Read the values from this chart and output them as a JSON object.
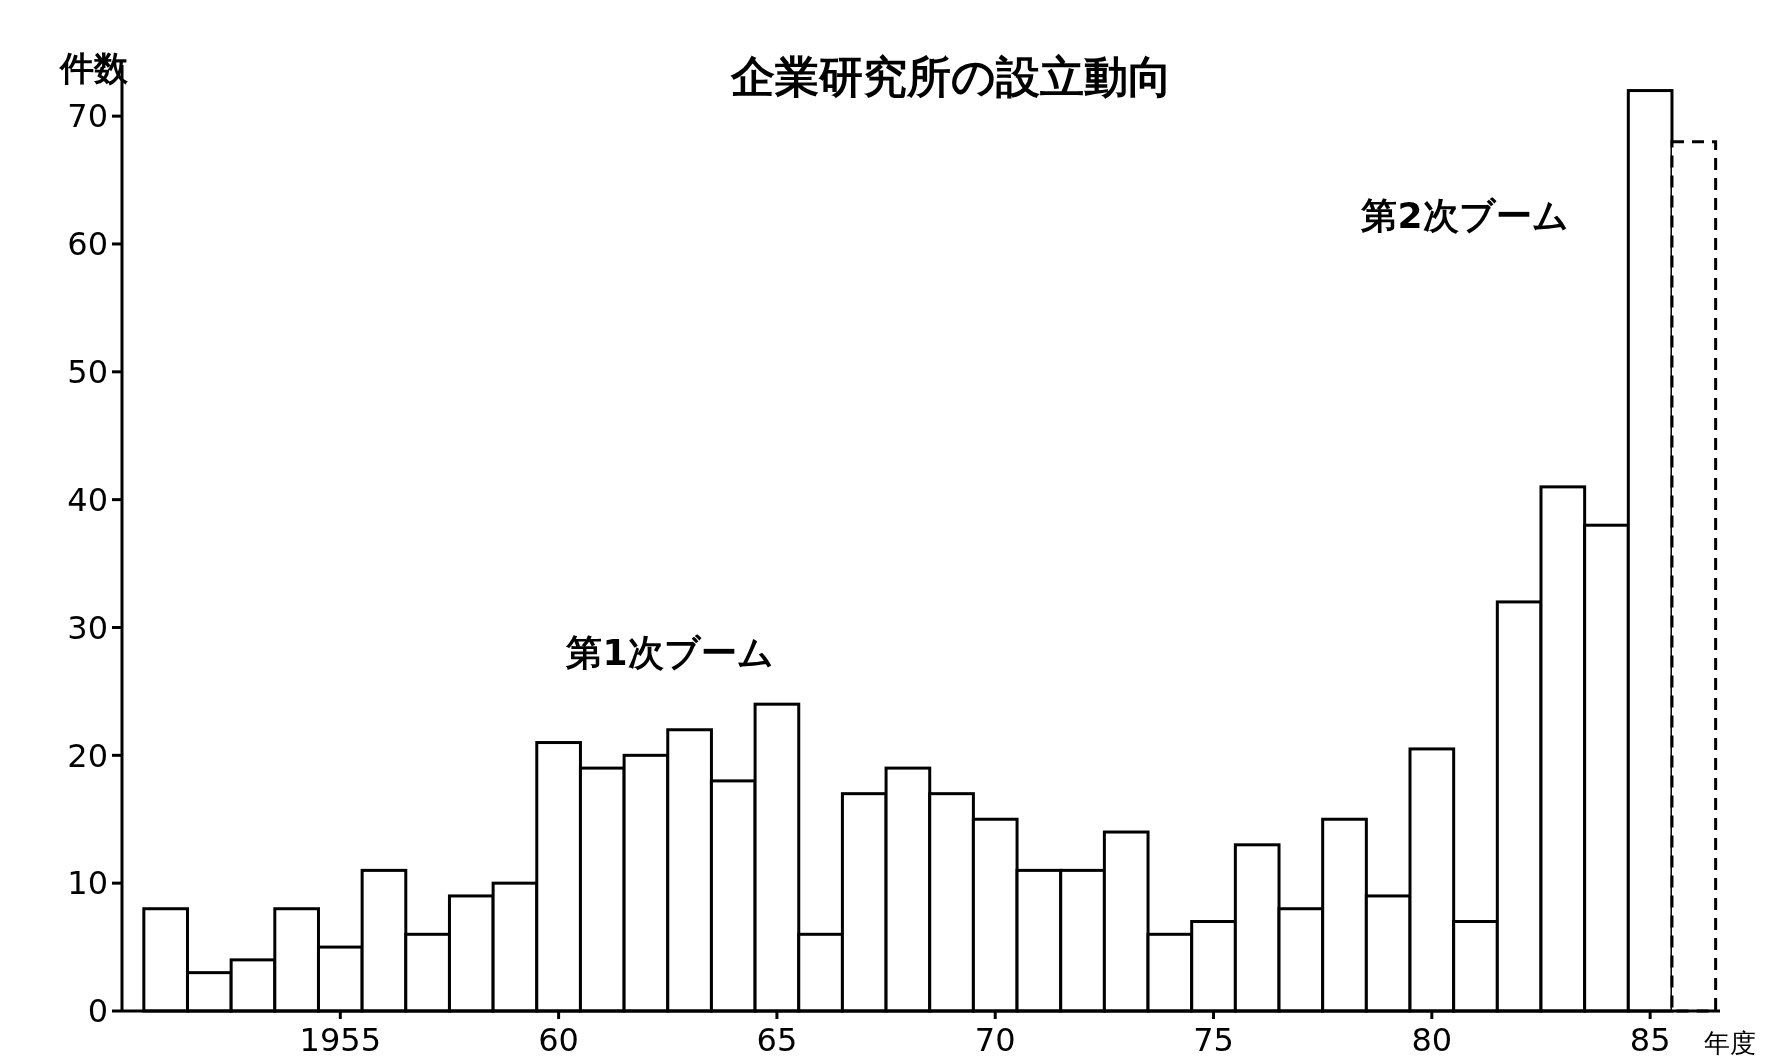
{
  "chart_data": {
    "type": "bar",
    "title": "企業研究所の設立動向",
    "ylabel": "件数",
    "xlabel": "年度",
    "x": [
      1951,
      1952,
      1953,
      1954,
      1955,
      1956,
      1957,
      1958,
      1959,
      1960,
      1961,
      1962,
      1963,
      1964,
      1965,
      1966,
      1967,
      1968,
      1969,
      1970,
      1971,
      1972,
      1973,
      1974,
      1975,
      1976,
      1977,
      1978,
      1979,
      1980,
      1981,
      1982,
      1983,
      1984,
      1985,
      1986
    ],
    "series": [
      {
        "color": "#000000",
        "line_style": "solid",
        "values": [
          8,
          3,
          4,
          8,
          5,
          11,
          6,
          9,
          10,
          21,
          19,
          20,
          22,
          18,
          24,
          6,
          17,
          19,
          17,
          15,
          11,
          11,
          14,
          6,
          7,
          13,
          8,
          15,
          9,
          20.5,
          7,
          32,
          41,
          38,
          72,
          null
        ]
      },
      {
        "color": "#000000",
        "line_style": "dashed",
        "values": [
          null,
          null,
          null,
          null,
          null,
          null,
          null,
          null,
          null,
          null,
          null,
          null,
          null,
          null,
          null,
          null,
          null,
          null,
          null,
          null,
          null,
          null,
          null,
          null,
          null,
          null,
          null,
          null,
          null,
          null,
          null,
          null,
          null,
          null,
          null,
          68
        ]
      }
    ],
    "xlim": [
      1950,
      1986.6
    ],
    "xticks": [
      {
        "value": 1955,
        "label": "1955"
      },
      {
        "value": 1960,
        "label": "60"
      },
      {
        "value": 1965,
        "label": "65"
      },
      {
        "value": 1970,
        "label": "70"
      },
      {
        "value": 1975,
        "label": "75"
      },
      {
        "value": 1980,
        "label": "80"
      },
      {
        "value": 1985,
        "label": "85"
      }
    ],
    "ylim": [
      0,
      74
    ],
    "yticks": [
      0,
      10,
      20,
      30,
      40,
      50,
      60,
      70
    ],
    "grid": false,
    "annotations": [
      "第1次ブーム",
      "第2次ブーム"
    ]
  }
}
